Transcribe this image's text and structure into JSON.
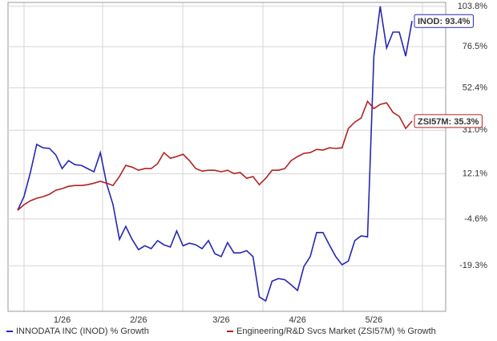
{
  "chart_data": {
    "type": "line",
    "log_scale": true,
    "grid": true,
    "categories": [
      null,
      null,
      null,
      null,
      null,
      null,
      null,
      "1/26",
      null,
      null,
      null,
      null,
      null,
      null,
      null,
      null,
      null,
      null,
      null,
      "2/26",
      null,
      null,
      null,
      null,
      null,
      null,
      null,
      null,
      null,
      null,
      null,
      null,
      "3/26",
      null,
      null,
      null,
      null,
      null,
      null,
      null,
      null,
      null,
      null,
      null,
      "4/26",
      null,
      null,
      null,
      null,
      null,
      null,
      null,
      null,
      null,
      null,
      null,
      "5/26",
      null,
      null,
      null,
      null,
      null,
      null
    ],
    "ylim": [
      -31.4,
      106.7
    ],
    "yticks": [
      {
        "value": 103.8,
        "label": "103.8%"
      },
      {
        "value": 76.5,
        "label": "76.5%"
      },
      {
        "value": 52.4,
        "label": "52.4%"
      },
      {
        "value": 31.0,
        "label": "31.0%"
      },
      {
        "value": 12.1,
        "label": "12.1%"
      },
      {
        "value": -4.6,
        "label": "-4.6%"
      },
      {
        "value": -19.3,
        "label": "-19.3%"
      }
    ],
    "series": [
      {
        "name": "INNODATA INC (INOD) % Growth",
        "color": "#2727b0",
        "end_label": "INOD: 93.4%",
        "values": [
          -1.6,
          3.3,
          12.6,
          24.5,
          23.0,
          22.7,
          19.9,
          14.2,
          17.5,
          15.8,
          15.5,
          14.2,
          12.9,
          20.9,
          8.1,
          0.4,
          -11.3,
          -7.1,
          -11.3,
          -14.5,
          -13.3,
          -14.2,
          -11.7,
          -13.0,
          -13.7,
          -8.6,
          -13.3,
          -12.5,
          -13.0,
          -14.2,
          -11.7,
          -15.7,
          -16.6,
          -12.3,
          -15.5,
          -15.5,
          -14.8,
          -16.6,
          -27.8,
          -28.8,
          -23.6,
          -22.9,
          -23.2,
          -24.6,
          -26.1,
          -19.5,
          -16.6,
          -9.1,
          -9.1,
          -13.0,
          -16.6,
          -19.0,
          -17.9,
          -11.7,
          -10.2,
          -10.5,
          70.6,
          103.8,
          75.6,
          85.9,
          85.9,
          70.6,
          93.4
        ]
      },
      {
        "name": "Engineering/R&D Svcs Market (ZSI57M) % Growth",
        "color": "#b02222",
        "end_label": "ZSI57M: 35.3%",
        "values": [
          -1.6,
          0.4,
          1.8,
          2.7,
          3.3,
          4.2,
          5.7,
          6.3,
          7.2,
          7.5,
          7.5,
          7.8,
          8.4,
          9.1,
          8.4,
          7.5,
          11.0,
          15.5,
          14.8,
          13.5,
          14.2,
          14.2,
          16.2,
          20.9,
          18.5,
          19.2,
          20.2,
          17.5,
          14.2,
          13.2,
          13.5,
          13.5,
          12.9,
          13.5,
          12.2,
          12.6,
          10.3,
          11.0,
          7.8,
          10.3,
          13.5,
          13.5,
          14.2,
          17.5,
          19.2,
          20.6,
          20.9,
          22.3,
          22.0,
          23.0,
          22.7,
          23.0,
          31.8,
          34.8,
          36.8,
          45.2,
          41.5,
          43.6,
          44.4,
          39.6,
          37.6,
          31.8,
          35.3
        ]
      }
    ]
  }
}
